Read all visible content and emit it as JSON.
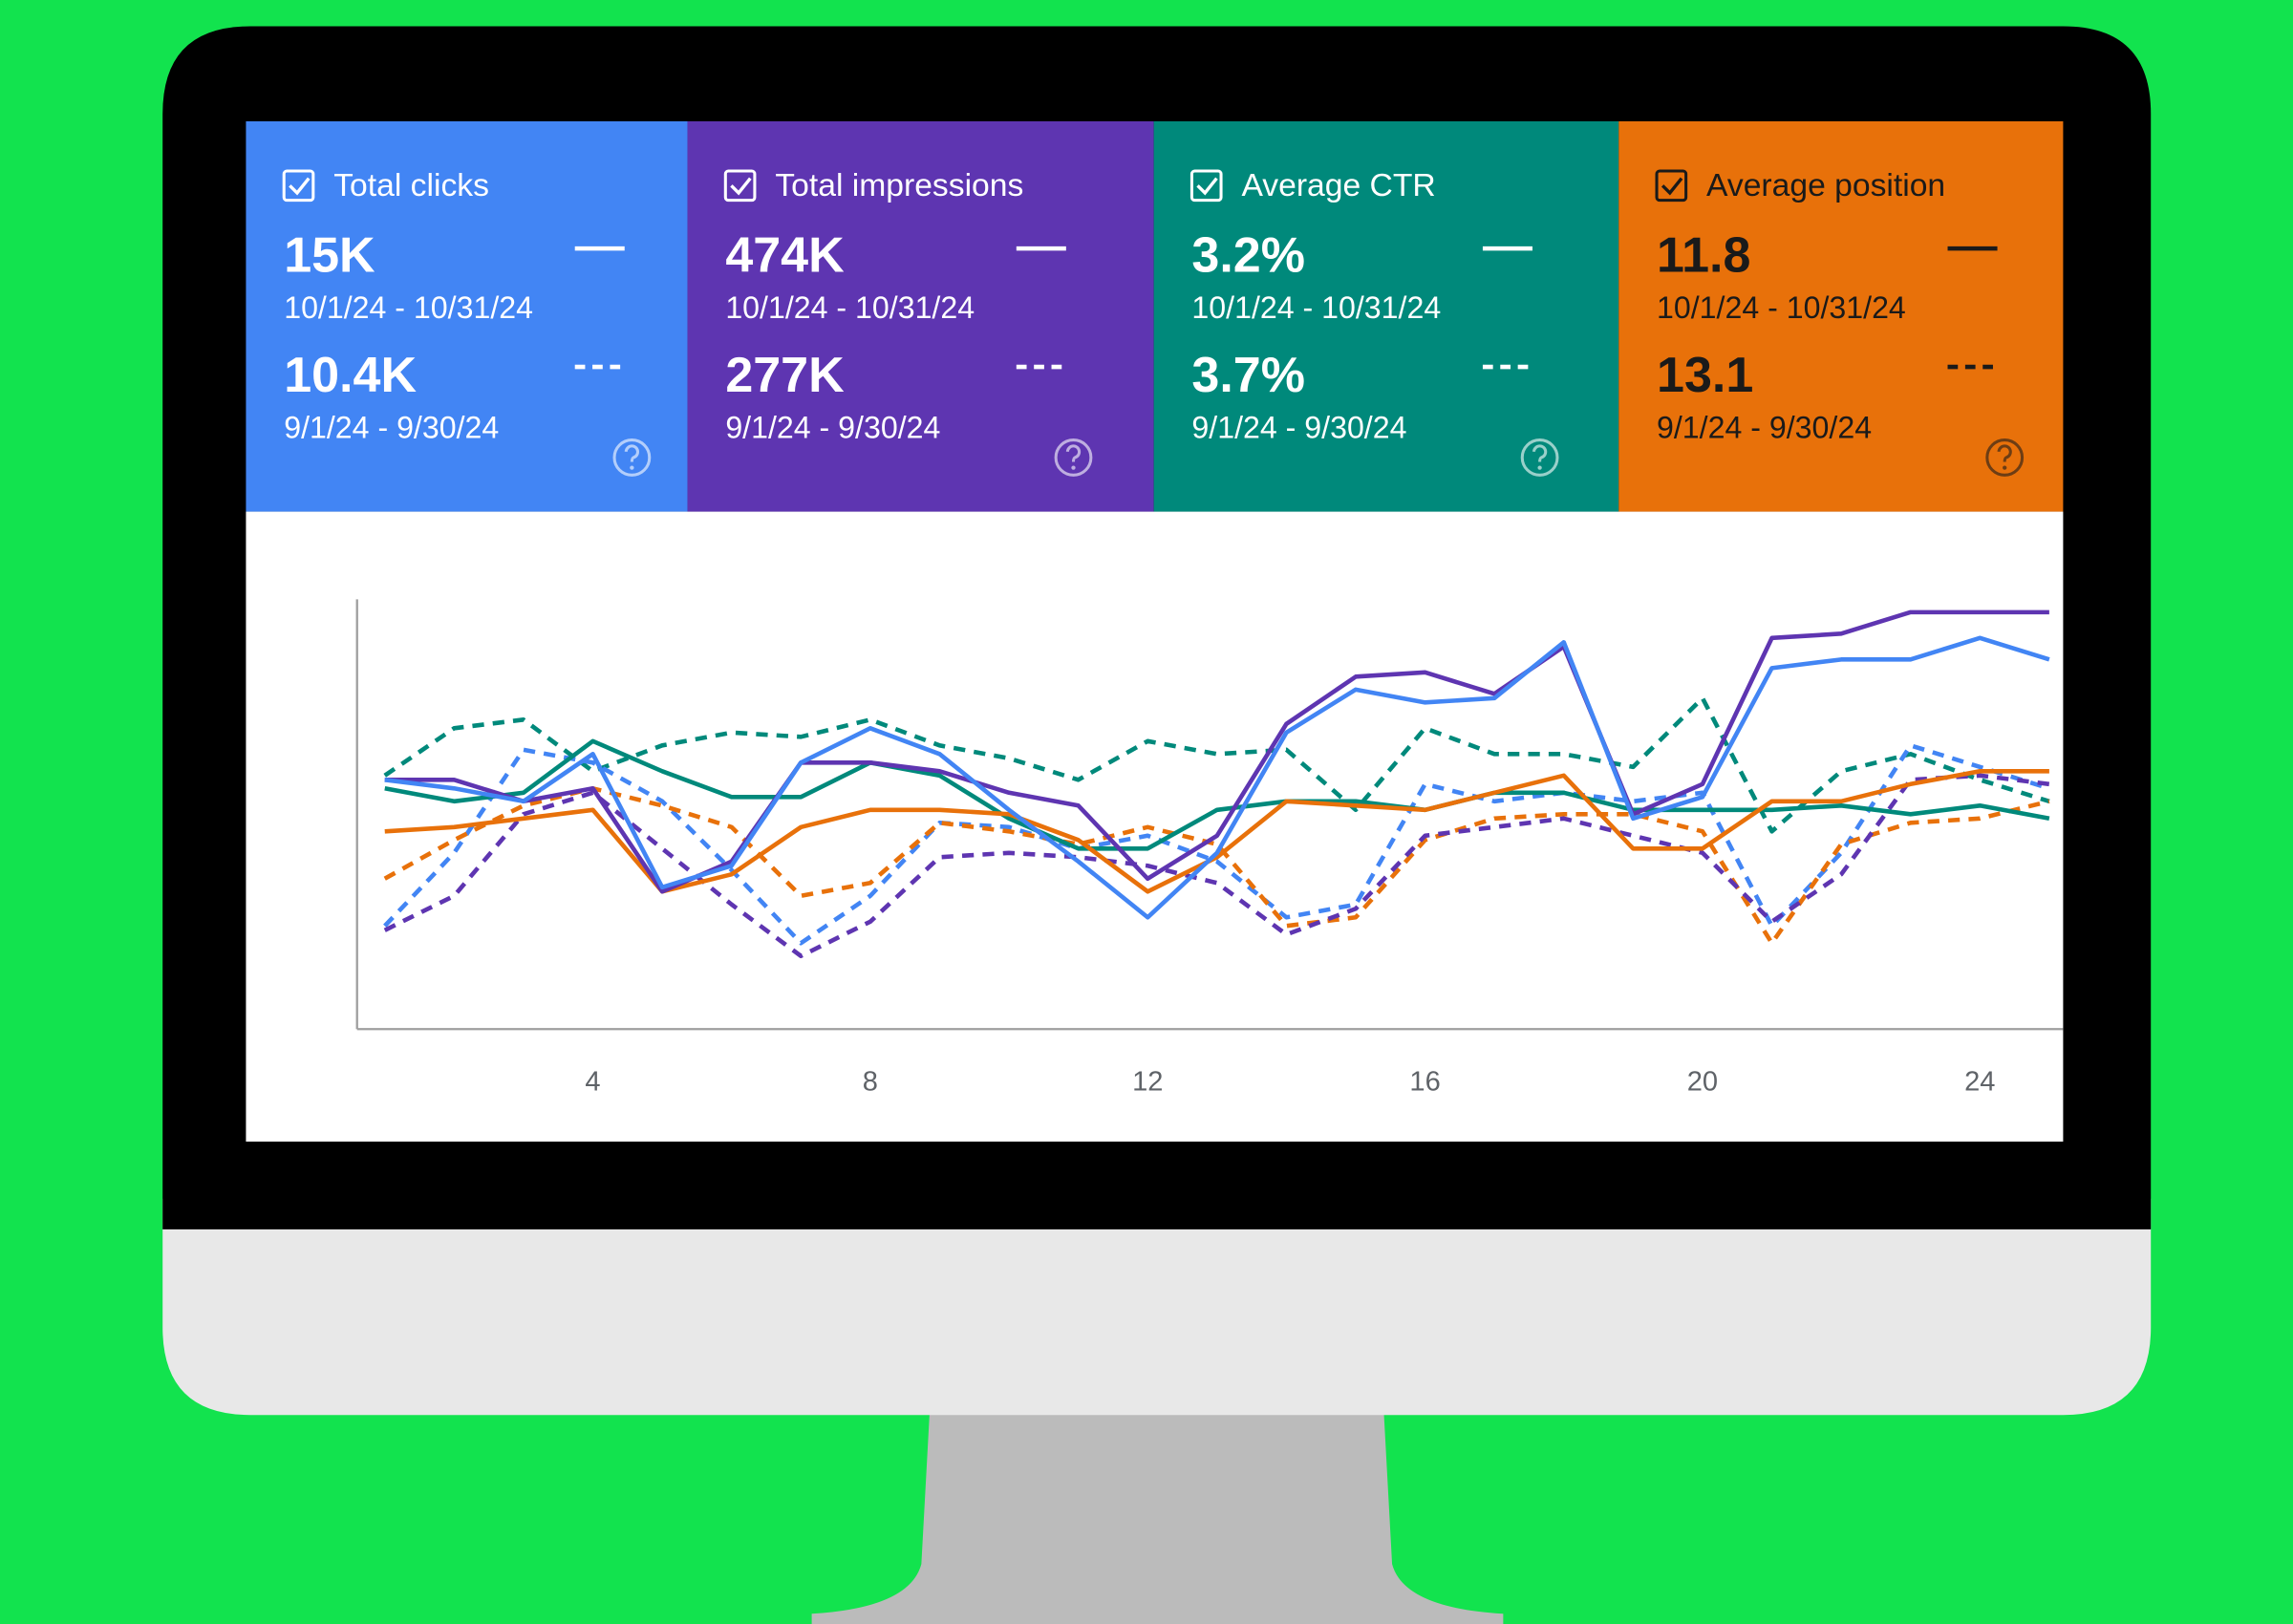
{
  "cards": [
    {
      "label": "Total clicks",
      "current_value": "15K",
      "current_range": "10/1/24 - 10/31/24",
      "previous_value": "10.4K",
      "previous_range": "9/1/24 - 9/30/24",
      "color": "#4285f4",
      "text_color": "#ffffff"
    },
    {
      "label": "Total impressions",
      "current_value": "474K",
      "current_range": "10/1/24 - 10/31/24",
      "previous_value": "277K",
      "previous_range": "9/1/24 - 9/30/24",
      "color": "#5e35b1",
      "text_color": "#ffffff"
    },
    {
      "label": "Average CTR",
      "current_value": "3.2%",
      "current_range": "10/1/24 - 10/31/24",
      "previous_value": "3.7%",
      "previous_range": "9/1/24 - 9/30/24",
      "color": "#00897b",
      "text_color": "#ffffff"
    },
    {
      "label": "Average position",
      "current_value": "11.8",
      "current_range": "10/1/24 - 10/31/24",
      "previous_value": "13.1",
      "previous_range": "9/1/24 - 9/30/24",
      "color": "#e8710a",
      "text_color": "#1a1a1a"
    }
  ],
  "chart_data": {
    "type": "line",
    "x": [
      1,
      2,
      3,
      4,
      5,
      6,
      7,
      8,
      9,
      10,
      11,
      12,
      13,
      14,
      15,
      16,
      17,
      18,
      19,
      20,
      21,
      22,
      23,
      24,
      25
    ],
    "xlim": [
      0.6,
      25.2
    ],
    "xticks": [
      4,
      8,
      12,
      16,
      20,
      24
    ],
    "ylim": [
      0,
      100
    ],
    "series": [
      {
        "color": "#00897b",
        "dash": true,
        "values": [
          59,
          70,
          72,
          60,
          66,
          69,
          68,
          72,
          66,
          63,
          58,
          67,
          64,
          65,
          51,
          70,
          64,
          64,
          61,
          77,
          46,
          60,
          64,
          58,
          53
        ]
      },
      {
        "color": "#4285f4",
        "dash": true,
        "values": [
          24,
          41,
          65,
          62,
          53,
          37,
          20,
          31,
          48,
          47,
          42,
          45,
          39,
          26,
          29,
          57,
          53,
          55,
          53,
          55,
          24,
          41,
          66,
          61,
          56
        ]
      },
      {
        "color": "#e8710a",
        "dash": true,
        "values": [
          35,
          44,
          52,
          56,
          52,
          47,
          31,
          34,
          48,
          46,
          43,
          47,
          43,
          24,
          26,
          44,
          49,
          50,
          50,
          46,
          20,
          43,
          48,
          49,
          53
        ]
      },
      {
        "color": "#5e35b1",
        "dash": true,
        "values": [
          23,
          31,
          50,
          55,
          42,
          29,
          17,
          25,
          40,
          41,
          40,
          38,
          34,
          22,
          28,
          45,
          47,
          49,
          45,
          41,
          25,
          36,
          58,
          59,
          57
        ]
      },
      {
        "color": "#00897b",
        "dash": false,
        "values": [
          56,
          53,
          55,
          67,
          60,
          54,
          54,
          62,
          59,
          49,
          42,
          42,
          51,
          53,
          53,
          51,
          55,
          55,
          51,
          51,
          51,
          52,
          50,
          52,
          49
        ]
      },
      {
        "color": "#e8710a",
        "dash": false,
        "values": [
          46,
          47,
          49,
          51,
          32,
          36,
          47,
          51,
          51,
          50,
          44,
          32,
          40,
          53,
          52,
          51,
          55,
          59,
          42,
          42,
          53,
          53,
          57,
          60,
          60
        ]
      },
      {
        "color": "#5e35b1",
        "dash": false,
        "values": [
          58,
          58,
          53,
          56,
          32,
          39,
          62,
          62,
          60,
          55,
          52,
          35,
          45,
          71,
          82,
          83,
          78,
          89,
          50,
          57,
          91,
          92,
          97,
          97,
          97
        ]
      },
      {
        "color": "#4285f4",
        "dash": false,
        "values": [
          58,
          56,
          53,
          64,
          33,
          38,
          62,
          70,
          64,
          51,
          39,
          26,
          41,
          69,
          79,
          76,
          77,
          90,
          49,
          54,
          84,
          86,
          86,
          91,
          86
        ]
      }
    ]
  }
}
